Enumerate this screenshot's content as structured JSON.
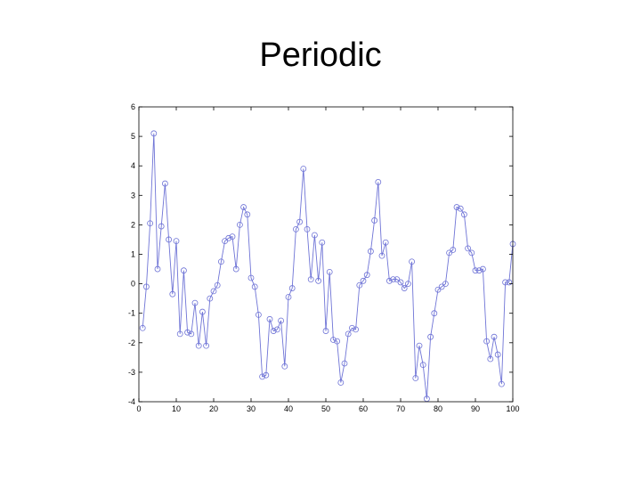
{
  "slide": {
    "title": "Periodic"
  },
  "chart_data": {
    "type": "line",
    "title": "",
    "xlabel": "",
    "ylabel": "",
    "xlim": [
      0,
      100
    ],
    "ylim": [
      -4,
      6
    ],
    "x_ticks": [
      0,
      10,
      20,
      30,
      40,
      50,
      60,
      70,
      80,
      90,
      100
    ],
    "y_ticks": [
      -4,
      -3,
      -2,
      -1,
      0,
      1,
      2,
      3,
      4,
      5,
      6
    ],
    "grid": false,
    "legend": "none",
    "marker": "circle",
    "series_color": "#6f74d6",
    "series": [
      {
        "x": [
          1,
          2,
          3,
          4,
          5,
          6,
          7,
          8,
          9,
          10,
          11,
          12,
          13,
          14,
          15,
          16,
          17,
          18,
          19,
          20,
          21,
          22,
          23,
          24,
          25,
          26,
          27,
          28,
          29,
          30,
          31,
          32,
          33,
          34,
          35,
          36,
          37,
          38,
          39,
          40,
          41,
          42,
          43,
          44,
          45,
          46,
          47,
          48,
          49,
          50,
          51,
          52,
          53,
          54,
          55,
          56,
          57,
          58,
          59,
          60,
          61,
          62,
          63,
          64,
          65,
          66,
          67,
          68,
          69,
          70,
          71,
          72,
          73,
          74,
          75,
          76,
          77,
          78,
          79,
          80,
          81,
          82,
          83,
          84,
          85,
          86,
          87,
          88,
          89,
          90,
          91,
          92,
          93,
          94,
          95,
          96,
          97,
          98,
          99,
          100
        ],
        "values": [
          -1.5,
          -0.1,
          2.05,
          5.1,
          0.5,
          1.95,
          3.4,
          1.5,
          -0.35,
          1.45,
          -1.7,
          0.45,
          -1.65,
          -1.7,
          -0.65,
          -2.1,
          -0.95,
          -2.1,
          -0.5,
          -0.25,
          -0.05,
          0.75,
          1.45,
          1.55,
          1.6,
          0.5,
          2.0,
          2.6,
          2.35,
          0.2,
          -0.1,
          -1.05,
          -3.15,
          -3.1,
          -1.2,
          -1.6,
          -1.55,
          -1.25,
          -2.8,
          -0.45,
          -0.15,
          1.85,
          2.1,
          3.9,
          1.85,
          0.15,
          1.65,
          0.1,
          1.4,
          -1.6,
          0.4,
          -1.9,
          -1.95,
          -3.35,
          -2.7,
          -1.7,
          -1.5,
          -1.55,
          -0.05,
          0.1,
          0.3,
          1.1,
          2.15,
          3.45,
          0.95,
          1.4,
          0.1,
          0.15,
          0.15,
          0.05,
          -0.15,
          0.0,
          0.75,
          -3.2,
          -2.1,
          -2.75,
          -3.9,
          -1.8,
          -1.0,
          -0.2,
          -0.1,
          0.0,
          1.05,
          1.15,
          2.6,
          2.55,
          2.35,
          1.2,
          1.05,
          0.45,
          0.45,
          0.5,
          -1.95,
          -2.55,
          -1.8,
          -2.4,
          -3.4,
          0.05,
          0.05,
          1.35
        ]
      }
    ]
  }
}
